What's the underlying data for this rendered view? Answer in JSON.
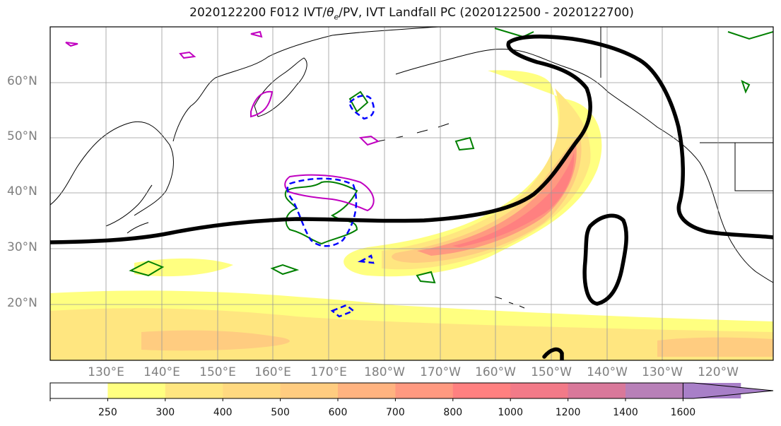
{
  "title": "2020122200 F012 IVT/θe/PV, IVT Landfall PC (2020122500 - 2020122700)",
  "lat_labels": [
    "60°N",
    "50°N",
    "40°N",
    "30°N",
    "20°N"
  ],
  "lon_labels": [
    "130°E",
    "140°E",
    "150°E",
    "160°E",
    "170°E",
    "180°W",
    "170°W",
    "160°W",
    "150°W",
    "140°W",
    "130°W",
    "120°W"
  ],
  "colorbar": {
    "ticks": [
      "250",
      "300",
      "400",
      "500",
      "600",
      "700",
      "800",
      "1000",
      "1200",
      "1400",
      "1600"
    ],
    "colors": [
      "#ffffff",
      "#ffff80",
      "#ffe680",
      "#ffd980",
      "#ffcc80",
      "#ffb380",
      "#ff9980",
      "#ff8080",
      "#f27a88",
      "#d9789a",
      "#b880b8",
      "#a87fc8"
    ],
    "extend": "max"
  },
  "colors": {
    "pc_contour": "#000000",
    "theta_e": "#008000",
    "pv_positive": "#c000c0",
    "pv_negative": "#0000ff",
    "grid": "#999999"
  }
}
